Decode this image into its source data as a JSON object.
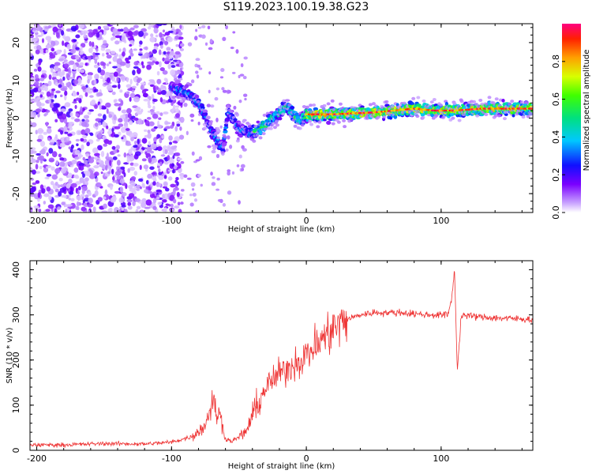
{
  "title": "S119.2023.100.19.38.G23",
  "chart_data": [
    {
      "type": "heatmap",
      "title": "S119.2023.100.19.38.G23",
      "xlabel": "Height of straight line (km)",
      "ylabel": "Frequency (Hz)",
      "xlim": [
        -205,
        168
      ],
      "ylim": [
        -25,
        25
      ],
      "xticks": [
        -200,
        -100,
        0,
        100
      ],
      "yticks": [
        -20,
        -10,
        0,
        10,
        20
      ],
      "colorbar": {
        "label": "Normalized spectral amplitude",
        "range": [
          0,
          1
        ],
        "ticks": [
          0.0,
          0.2,
          0.4,
          0.6,
          0.8
        ],
        "tick_labels": [
          "0.0",
          "0.2",
          "0.4",
          "0.6",
          "0.8"
        ]
      },
      "ridge": {
        "height_km": [
          -100,
          -90,
          -80,
          -70,
          -62,
          -58,
          -50,
          -42,
          -35,
          -25,
          -15,
          -5,
          0,
          20,
          50,
          80,
          95,
          110,
          130,
          168
        ],
        "frequency_hz": [
          8,
          7,
          4,
          -4,
          -8,
          2,
          -3,
          -4,
          -3,
          0,
          3,
          -1,
          1,
          1,
          1.5,
          2.5,
          2,
          2,
          2.5,
          2.5
        ]
      }
    },
    {
      "type": "line",
      "xlabel": "Height of straight line (km)",
      "ylabel": "SNR (10 * v/v)",
      "xlim": [
        -205,
        168
      ],
      "ylim": [
        0,
        420
      ],
      "xticks": [
        -200,
        -100,
        0,
        100
      ],
      "yticks": [
        0,
        100,
        200,
        300,
        400
      ],
      "color": "#ee3333",
      "series": [
        {
          "name": "SNR",
          "x": [
            -205,
            -180,
            -150,
            -120,
            -100,
            -85,
            -75,
            -70,
            -66,
            -63,
            -60,
            -55,
            -45,
            -38,
            -30,
            -20,
            -10,
            0,
            10,
            20,
            30,
            40,
            50,
            70,
            90,
            105,
            108,
            110,
            112,
            115,
            130,
            150,
            168
          ],
          "y": [
            12,
            12,
            15,
            14,
            18,
            30,
            55,
            110,
            80,
            70,
            25,
            20,
            40,
            90,
            140,
            170,
            190,
            210,
            240,
            270,
            290,
            300,
            305,
            305,
            300,
            300,
            340,
            400,
            175,
            300,
            295,
            292,
            290
          ]
        }
      ]
    }
  ]
}
